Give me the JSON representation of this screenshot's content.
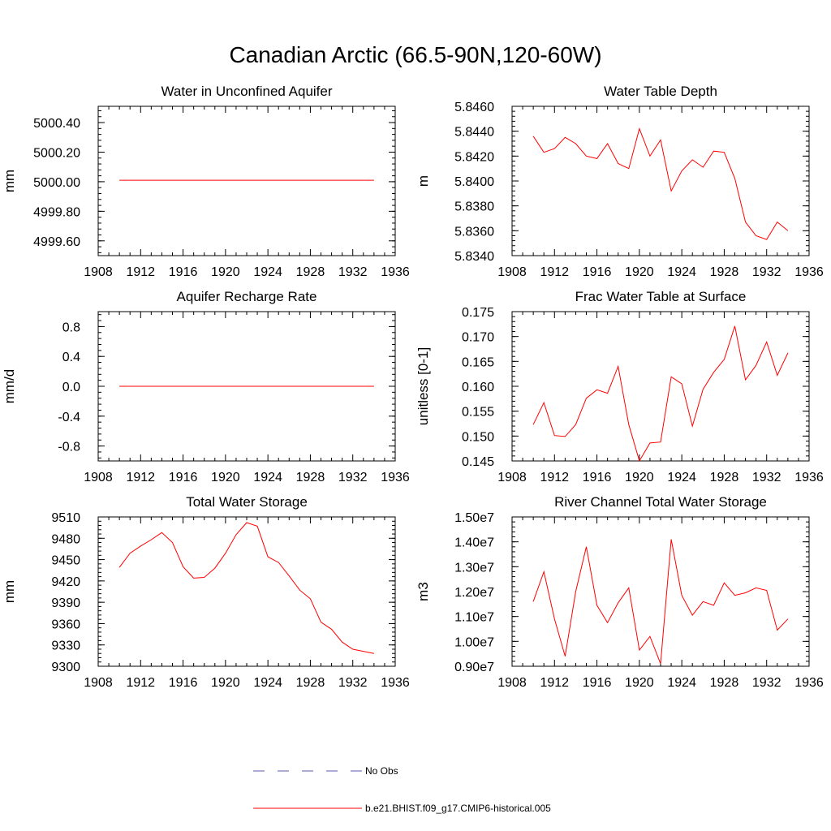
{
  "figure_title": "Canadian Arctic (66.5-90N,120-60W)",
  "colors": {
    "model": "#ff0000",
    "obs": "#5a5aa8",
    "axis": "#000000"
  },
  "legend": {
    "entries": [
      {
        "label": "No Obs",
        "style": "dashed",
        "color": "#5a5aa8"
      },
      {
        "label": "b.e21.BHIST.f09_g17.CMIP6-historical.005",
        "style": "solid",
        "color": "#ff0000"
      }
    ]
  },
  "chart_data": [
    {
      "type": "line",
      "title": "Water in Unconfined Aquifer",
      "ylabel": "mm",
      "xlabel": "",
      "xlim": [
        1908,
        1936
      ],
      "xticks": [
        1908,
        1912,
        1916,
        1920,
        1924,
        1928,
        1932,
        1936
      ],
      "ylim": [
        4999.5,
        5000.51
      ],
      "yticks": [
        4999.6,
        4999.8,
        5000.0,
        5000.2,
        5000.4
      ],
      "yticklabels": [
        "4999.60",
        "4999.80",
        "5000.00",
        "5000.20",
        "5000.40"
      ],
      "x": [
        1910,
        1911,
        1912,
        1913,
        1914,
        1915,
        1916,
        1917,
        1918,
        1919,
        1920,
        1921,
        1922,
        1923,
        1924,
        1925,
        1926,
        1927,
        1928,
        1929,
        1930,
        1931,
        1932,
        1933,
        1934
      ],
      "series": [
        {
          "values": [
            5000.01,
            5000.01,
            5000.01,
            5000.01,
            5000.01,
            5000.01,
            5000.01,
            5000.01,
            5000.01,
            5000.01,
            5000.01,
            5000.01,
            5000.01,
            5000.01,
            5000.01,
            5000.01,
            5000.01,
            5000.01,
            5000.01,
            5000.01,
            5000.01,
            5000.01,
            5000.01,
            5000.01,
            5000.01
          ]
        }
      ]
    },
    {
      "type": "line",
      "title": "Water Table Depth",
      "ylabel": "m",
      "xlabel": "",
      "xlim": [
        1908,
        1936
      ],
      "xticks": [
        1908,
        1912,
        1916,
        1920,
        1924,
        1928,
        1932,
        1936
      ],
      "ylim": [
        5.834,
        5.846
      ],
      "yticks": [
        5.834,
        5.836,
        5.838,
        5.84,
        5.842,
        5.844,
        5.846
      ],
      "yticklabels": [
        "5.8340",
        "5.8360",
        "5.8380",
        "5.8400",
        "5.8420",
        "5.8440",
        "5.8460"
      ],
      "x": [
        1910,
        1911,
        1912,
        1913,
        1914,
        1915,
        1916,
        1917,
        1918,
        1919,
        1920,
        1921,
        1922,
        1923,
        1924,
        1925,
        1926,
        1927,
        1928,
        1929,
        1930,
        1931,
        1932,
        1933,
        1934
      ],
      "series": [
        {
          "values": [
            5.8436,
            5.8423,
            5.8426,
            5.8435,
            5.843,
            5.842,
            5.8418,
            5.843,
            5.8414,
            5.841,
            5.8442,
            5.842,
            5.8433,
            5.8392,
            5.8408,
            5.8417,
            5.8411,
            5.8424,
            5.8423,
            5.8402,
            5.8367,
            5.8356,
            5.8353,
            5.8367,
            5.836
          ]
        }
      ]
    },
    {
      "type": "line",
      "title": "Aquifer Recharge Rate",
      "ylabel": "mm/d",
      "xlabel": "",
      "xlim": [
        1908,
        1936
      ],
      "xticks": [
        1908,
        1912,
        1916,
        1920,
        1924,
        1928,
        1932,
        1936
      ],
      "ylim": [
        -1.0,
        1.0
      ],
      "yticks": [
        -0.8,
        -0.4,
        0.0,
        0.4,
        0.8
      ],
      "yticklabels": [
        "-0.8",
        "-0.4",
        "0.0",
        "0.4",
        "0.8"
      ],
      "x": [
        1910,
        1911,
        1912,
        1913,
        1914,
        1915,
        1916,
        1917,
        1918,
        1919,
        1920,
        1921,
        1922,
        1923,
        1924,
        1925,
        1926,
        1927,
        1928,
        1929,
        1930,
        1931,
        1932,
        1933,
        1934
      ],
      "series": [
        {
          "values": [
            0,
            0,
            0,
            0,
            0,
            0,
            0,
            0,
            0,
            0,
            0,
            0,
            0,
            0,
            0,
            0,
            0,
            0,
            0,
            0,
            0,
            0,
            0,
            0,
            0
          ]
        }
      ]
    },
    {
      "type": "line",
      "title": "Frac Water Table at Surface",
      "ylabel": "unitless [0-1]",
      "xlabel": "",
      "xlim": [
        1908,
        1936
      ],
      "xticks": [
        1908,
        1912,
        1916,
        1920,
        1924,
        1928,
        1932,
        1936
      ],
      "ylim": [
        0.145,
        0.175
      ],
      "yticks": [
        0.145,
        0.15,
        0.155,
        0.16,
        0.165,
        0.17,
        0.175
      ],
      "yticklabels": [
        "0.145",
        "0.150",
        "0.155",
        "0.160",
        "0.165",
        "0.170",
        "0.175"
      ],
      "x": [
        1910,
        1911,
        1912,
        1913,
        1914,
        1915,
        1916,
        1917,
        1918,
        1919,
        1920,
        1921,
        1922,
        1923,
        1924,
        1925,
        1926,
        1927,
        1928,
        1929,
        1930,
        1931,
        1932,
        1933,
        1934
      ],
      "series": [
        {
          "values": [
            0.1523,
            0.1567,
            0.1501,
            0.1499,
            0.1523,
            0.1576,
            0.1593,
            0.1586,
            0.164,
            0.1523,
            0.145,
            0.1486,
            0.1488,
            0.1619,
            0.1605,
            0.152,
            0.1594,
            0.1628,
            0.1654,
            0.1721,
            0.1613,
            0.1642,
            0.1689,
            0.1622,
            0.1667
          ]
        }
      ]
    },
    {
      "type": "line",
      "title": "Total Water Storage",
      "ylabel": "mm",
      "xlabel": "",
      "xlim": [
        1908,
        1936
      ],
      "xticks": [
        1908,
        1912,
        1916,
        1920,
        1924,
        1928,
        1932,
        1936
      ],
      "ylim": [
        9300,
        9510
      ],
      "yticks": [
        9300,
        9330,
        9360,
        9390,
        9420,
        9450,
        9480,
        9510
      ],
      "yticklabels": [
        "9300",
        "9330",
        "9360",
        "9390",
        "9420",
        "9450",
        "9480",
        "9510"
      ],
      "x": [
        1910,
        1911,
        1912,
        1913,
        1914,
        1915,
        1916,
        1917,
        1918,
        1919,
        1920,
        1921,
        1922,
        1923,
        1924,
        1925,
        1926,
        1927,
        1928,
        1929,
        1930,
        1931,
        1932,
        1933,
        1934
      ],
      "series": [
        {
          "values": [
            9439,
            9459,
            9469,
            9478,
            9488,
            9474,
            9440,
            9424,
            9425,
            9438,
            9459,
            9485,
            9502,
            9497,
            9454,
            9446,
            9427,
            9407,
            9395,
            9362,
            9352,
            9334,
            9324,
            9321,
            9318
          ]
        }
      ]
    },
    {
      "type": "line",
      "title": "River Channel Total Water Storage",
      "ylabel": "m3",
      "xlabel": "",
      "xlim": [
        1908,
        1936
      ],
      "xticks": [
        1908,
        1912,
        1916,
        1920,
        1924,
        1928,
        1932,
        1936
      ],
      "ylim": [
        9000000,
        15000000
      ],
      "yticks": [
        9000000,
        10000000,
        11000000,
        12000000,
        13000000,
        14000000,
        15000000
      ],
      "yticklabels": [
        "0.90e7",
        "1.00e7",
        "1.10e7",
        "1.20e7",
        "1.30e7",
        "1.40e7",
        "1.50e7"
      ],
      "x": [
        1910,
        1911,
        1912,
        1913,
        1914,
        1915,
        1916,
        1917,
        1918,
        1919,
        1920,
        1921,
        1922,
        1923,
        1924,
        1925,
        1926,
        1927,
        1928,
        1929,
        1930,
        1931,
        1932,
        1933,
        1934
      ],
      "series": [
        {
          "values": [
            11600000,
            12800000,
            10900000,
            9400000,
            12000000,
            13800000,
            11450000,
            10750000,
            11550000,
            12150000,
            9650000,
            10200000,
            9100000,
            14100000,
            11850000,
            11050000,
            11600000,
            11450000,
            12350000,
            11850000,
            11950000,
            12150000,
            12050000,
            10450000,
            10900000
          ]
        }
      ]
    }
  ]
}
